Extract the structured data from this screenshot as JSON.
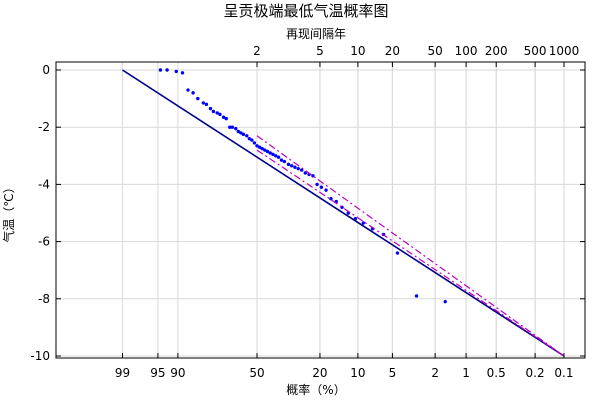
{
  "chart_data": {
    "type": "scatter",
    "title": "呈贡极端最低气温概率图",
    "xlabel": "概率（%）",
    "x2label": "再现间隔年",
    "ylabel": "气温（℃）",
    "ylim": [
      -10,
      0
    ],
    "y_ticks": [
      0,
      -2,
      -4,
      -6,
      -8,
      -10
    ],
    "y_tick_labels": [
      "0",
      "-2",
      "-4",
      "-6",
      "-8",
      "-10"
    ],
    "x_ticks": [
      99,
      95,
      90,
      50,
      20,
      10,
      5,
      2,
      1,
      0.5,
      0.2,
      0.1
    ],
    "x_tick_labels": [
      "99",
      "95",
      "90",
      "50",
      "20",
      "10",
      "5",
      "2",
      "1",
      "0.5",
      "0.2",
      "0.1"
    ],
    "x2_ticks": [
      2,
      5,
      10,
      20,
      50,
      100,
      200,
      500,
      1000
    ],
    "x2_tick_labels": [
      "2",
      "5",
      "10",
      "20",
      "50",
      "100",
      "200",
      "500",
      "1000"
    ],
    "grid": true,
    "colors": {
      "points": "#0000ff",
      "fit": "#00008b",
      "confidence": "#bf00bf",
      "grid": "#d9d9d9"
    },
    "series": [
      {
        "kind": "points",
        "points": [
          [
            94.5,
            0.0
          ],
          [
            93.0,
            0.0
          ],
          [
            90.5,
            -0.05
          ],
          [
            88.5,
            -0.1
          ],
          [
            86.5,
            -0.7
          ],
          [
            84.5,
            -0.8
          ],
          [
            82.5,
            -1.0
          ],
          [
            80.0,
            -1.15
          ],
          [
            78.5,
            -1.2
          ],
          [
            76.5,
            -1.35
          ],
          [
            75.0,
            -1.45
          ],
          [
            73.0,
            -1.5
          ],
          [
            71.5,
            -1.55
          ],
          [
            69.5,
            -1.65
          ],
          [
            68.0,
            -1.7
          ],
          [
            66.0,
            -2.0
          ],
          [
            64.5,
            -2.0
          ],
          [
            62.5,
            -2.05
          ],
          [
            61.0,
            -2.15
          ],
          [
            59.5,
            -2.2
          ],
          [
            58.0,
            -2.25
          ],
          [
            56.0,
            -2.3
          ],
          [
            54.5,
            -2.4
          ],
          [
            53.0,
            -2.45
          ],
          [
            51.5,
            -2.55
          ],
          [
            50.0,
            -2.65
          ],
          [
            48.5,
            -2.7
          ],
          [
            47.0,
            -2.75
          ],
          [
            45.5,
            -2.8
          ],
          [
            44.0,
            -2.85
          ],
          [
            42.5,
            -2.9
          ],
          [
            41.0,
            -2.95
          ],
          [
            39.5,
            -3.0
          ],
          [
            38.0,
            -3.05
          ],
          [
            36.5,
            -3.15
          ],
          [
            35.0,
            -3.2
          ],
          [
            33.0,
            -3.3
          ],
          [
            31.5,
            -3.35
          ],
          [
            30.0,
            -3.4
          ],
          [
            28.5,
            -3.45
          ],
          [
            27.0,
            -3.5
          ],
          [
            25.5,
            -3.6
          ],
          [
            24.0,
            -3.65
          ],
          [
            22.5,
            -3.7
          ],
          [
            21.0,
            -4.0
          ],
          [
            19.5,
            -4.1
          ],
          [
            18.0,
            -4.2
          ],
          [
            16.5,
            -4.5
          ],
          [
            15.0,
            -4.6
          ],
          [
            13.5,
            -4.8
          ],
          [
            12.0,
            -5.0
          ],
          [
            10.5,
            -5.2
          ],
          [
            9.0,
            -5.35
          ],
          [
            7.5,
            -5.55
          ],
          [
            6.0,
            -5.75
          ],
          [
            4.5,
            -6.4
          ],
          [
            3.0,
            -7.9
          ],
          [
            1.6,
            -8.1
          ]
        ]
      },
      {
        "kind": "fit",
        "points": [
          [
            99,
            0.0
          ],
          [
            0.1,
            -10.0
          ]
        ]
      },
      {
        "kind": "upper-bound",
        "points": [
          [
            50,
            -2.3
          ],
          [
            0.1,
            -10.0
          ]
        ]
      },
      {
        "kind": "lower-bound",
        "points": [
          [
            50,
            -2.8
          ],
          [
            0.1,
            -10.0
          ]
        ]
      }
    ]
  }
}
